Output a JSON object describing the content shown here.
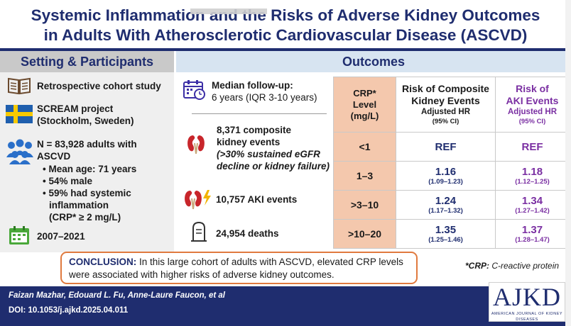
{
  "title": {
    "line1": "Systemic Inflammation and the Risks of Adverse Kidney Outcomes",
    "line2": "in Adults With Atherosclerotic Cardiovascular Disease (ASCVD)"
  },
  "setting": {
    "header": "Setting & Participants",
    "study_type": "Retrospective cohort study",
    "project_line1": "SCREAM project",
    "project_line2": "(Stockholm, Sweden)",
    "n_line1": "N = 83,928 adults with",
    "n_line2": "ASCVD",
    "bullets": [
      "• Mean age: 71 years",
      "• 54% male",
      "• 59% had systemic",
      "inflammation",
      "(CRP* ≥ 2 mg/L)"
    ],
    "period": "2007–2021"
  },
  "outcomes": {
    "header": "Outcomes",
    "followup_label": "Median follow-up:",
    "followup_value": "6 years (IQR 3-10 years)",
    "composite_line1": "8,371 composite",
    "composite_line2": "kidney events",
    "composite_line3": "(>30% sustained eGFR",
    "composite_line4": "decline or kidney failure)",
    "aki": "10,757 AKI events",
    "deaths": "24,954 deaths"
  },
  "table": {
    "crp_header_line1": "CRP*",
    "crp_header_line2": "Level",
    "crp_header_line3": "(mg/L)",
    "comp_header_line1": "Risk of Composite",
    "comp_header_line2": "Kidney Events",
    "comp_header_sub": "Adjusted HR",
    "comp_header_ci": "(95% CI)",
    "aki_header_line1": "Risk of",
    "aki_header_line2": "AKI Events",
    "aki_header_sub": "Adjusted HR",
    "aki_header_ci": "(95% CI)",
    "rows": [
      {
        "crp": "<1",
        "comp": "REF",
        "comp_ci": "",
        "aki": "REF",
        "aki_ci": ""
      },
      {
        "crp": "1–3",
        "comp": "1.16",
        "comp_ci": "(1.09–1.23)",
        "aki": "1.18",
        "aki_ci": "(1.12–1.25)"
      },
      {
        "crp": ">3–10",
        "comp": "1.24",
        "comp_ci": "(1.17–1.32)",
        "aki": "1.34",
        "aki_ci": "(1.27–1.42)"
      },
      {
        "crp": ">10–20",
        "comp": "1.35",
        "comp_ci": "(1.25–1.46)",
        "aki": "1.37",
        "aki_ci": "(1.28–1.47)"
      }
    ]
  },
  "conclusion": {
    "label": "CONCLUSION:",
    "text": " In this large cohort of adults with ASCVD, elevated CRP levels were associated with higher risks of adverse kidney outcomes."
  },
  "footnote": {
    "term": "*CRP:",
    "definition": " C-reactive protein"
  },
  "footer": {
    "authors": "Faizan Mazhar, Edouard L. Fu, Anne-Laure Faucon, et al",
    "doi": "DOI: 10.1053/j.ajkd.2025.04.011",
    "logo": "AJKD",
    "logo_sub": "AMERICAN JOURNAL OF KIDNEY DISEASES"
  },
  "colors": {
    "navy": "#1f2d6f",
    "purple": "#7a2fa2",
    "peach": "#f4c8ad",
    "orange": "#e07a3f"
  },
  "icons": [
    "book-icon",
    "sweden-flag-icon",
    "people-icon",
    "calendar-icon",
    "calendar-clock-icon",
    "kidneys-icon",
    "kidneys-lightning-icon",
    "tombstone-icon"
  ]
}
